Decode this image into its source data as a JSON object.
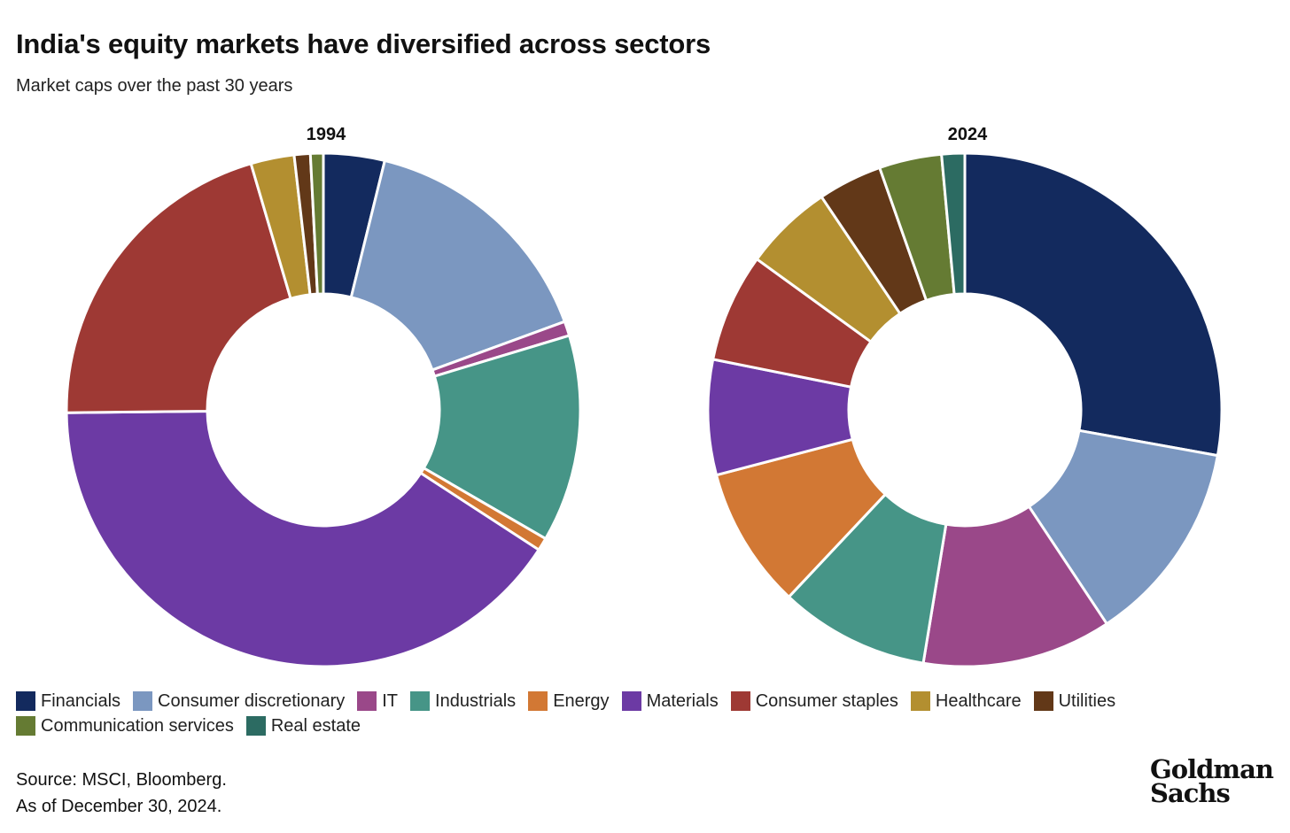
{
  "title": "India's equity markets have diversified across sectors",
  "subtitle": "Market caps over the past 30 years",
  "colors": {
    "Financials": "#132a5e",
    "Consumer discretionary": "#7b97c0",
    "IT": "#9a4889",
    "Industrials": "#469587",
    "Energy": "#d27834",
    "Materials": "#6c3aa4",
    "Consumer staples": "#9e3934",
    "Healthcare": "#b38f30",
    "Utilities": "#623818",
    "Communication services": "#657b33",
    "Real estate": "#2c6b62"
  },
  "chart_data": [
    {
      "type": "pie",
      "subtype": "donut",
      "title": "1994",
      "categories": [
        "Financials",
        "Consumer discretionary",
        "IT",
        "Industrials",
        "Energy",
        "Materials",
        "Consumer staples",
        "Healthcare",
        "Utilities",
        "Communication services",
        "Real estate"
      ],
      "values": [
        3.8,
        15.4,
        0.9,
        12.9,
        0.8,
        40.2,
        20.4,
        2.7,
        1.0,
        0.8,
        0.0
      ]
    },
    {
      "type": "pie",
      "subtype": "donut",
      "title": "2024",
      "categories": [
        "Financials",
        "Consumer discretionary",
        "IT",
        "Industrials",
        "Energy",
        "Materials",
        "Consumer staples",
        "Healthcare",
        "Utilities",
        "Communication services",
        "Real estate"
      ],
      "values": [
        26.9,
        12.4,
        11.5,
        9.1,
        8.6,
        7.0,
        6.6,
        5.4,
        3.9,
        3.8,
        1.4
      ]
    }
  ],
  "legend": [
    "Financials",
    "Consumer discretionary",
    "IT",
    "Industrials",
    "Energy",
    "Materials",
    "Consumer staples",
    "Healthcare",
    "Utilities",
    "Communication services",
    "Real estate"
  ],
  "source": {
    "line1": "Source: MSCI, Bloomberg.",
    "line2": "As of December 30, 2024."
  },
  "logo": {
    "line1": "Goldman",
    "line2": "Sachs"
  }
}
